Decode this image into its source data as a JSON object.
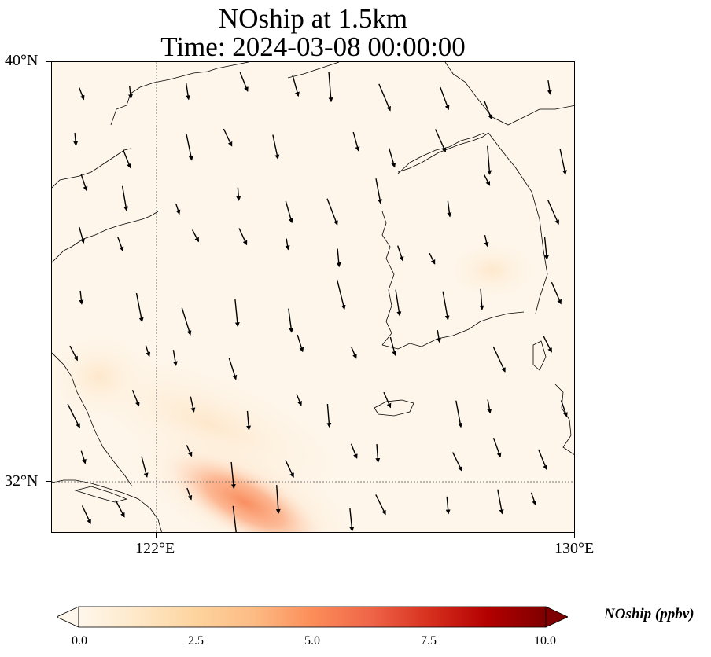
{
  "title": {
    "line1": "NOship at 1.5km",
    "line2": "Time: 2024-03-08 00:00:00"
  },
  "axes": {
    "lat_labels": [
      "40°N",
      "32°N"
    ],
    "lon_labels": [
      "122°E",
      "130°E"
    ],
    "lon_range": [
      120,
      130
    ],
    "lat_range": [
      31,
      40
    ]
  },
  "colorbar": {
    "label": "NOship (ppbv)",
    "ticks": [
      "0.0",
      "2.5",
      "5.0",
      "7.5",
      "10.0"
    ],
    "range": [
      0,
      10
    ],
    "colormap": "OrRd",
    "extend": "both"
  },
  "colors": {
    "background": "#fef6ea",
    "max_plume": "#f98b5f",
    "coastline": "#000000",
    "gridline": "#777777"
  },
  "field": {
    "description_hint": "NOship concentration field with plume maximum near 123.5E 31.7N",
    "peak_ppbv": 3.9,
    "peak_lon": 123.6,
    "peak_lat": 31.6
  },
  "wind": {
    "prevailing": "north-northwesterly",
    "vectors_count": 90
  }
}
